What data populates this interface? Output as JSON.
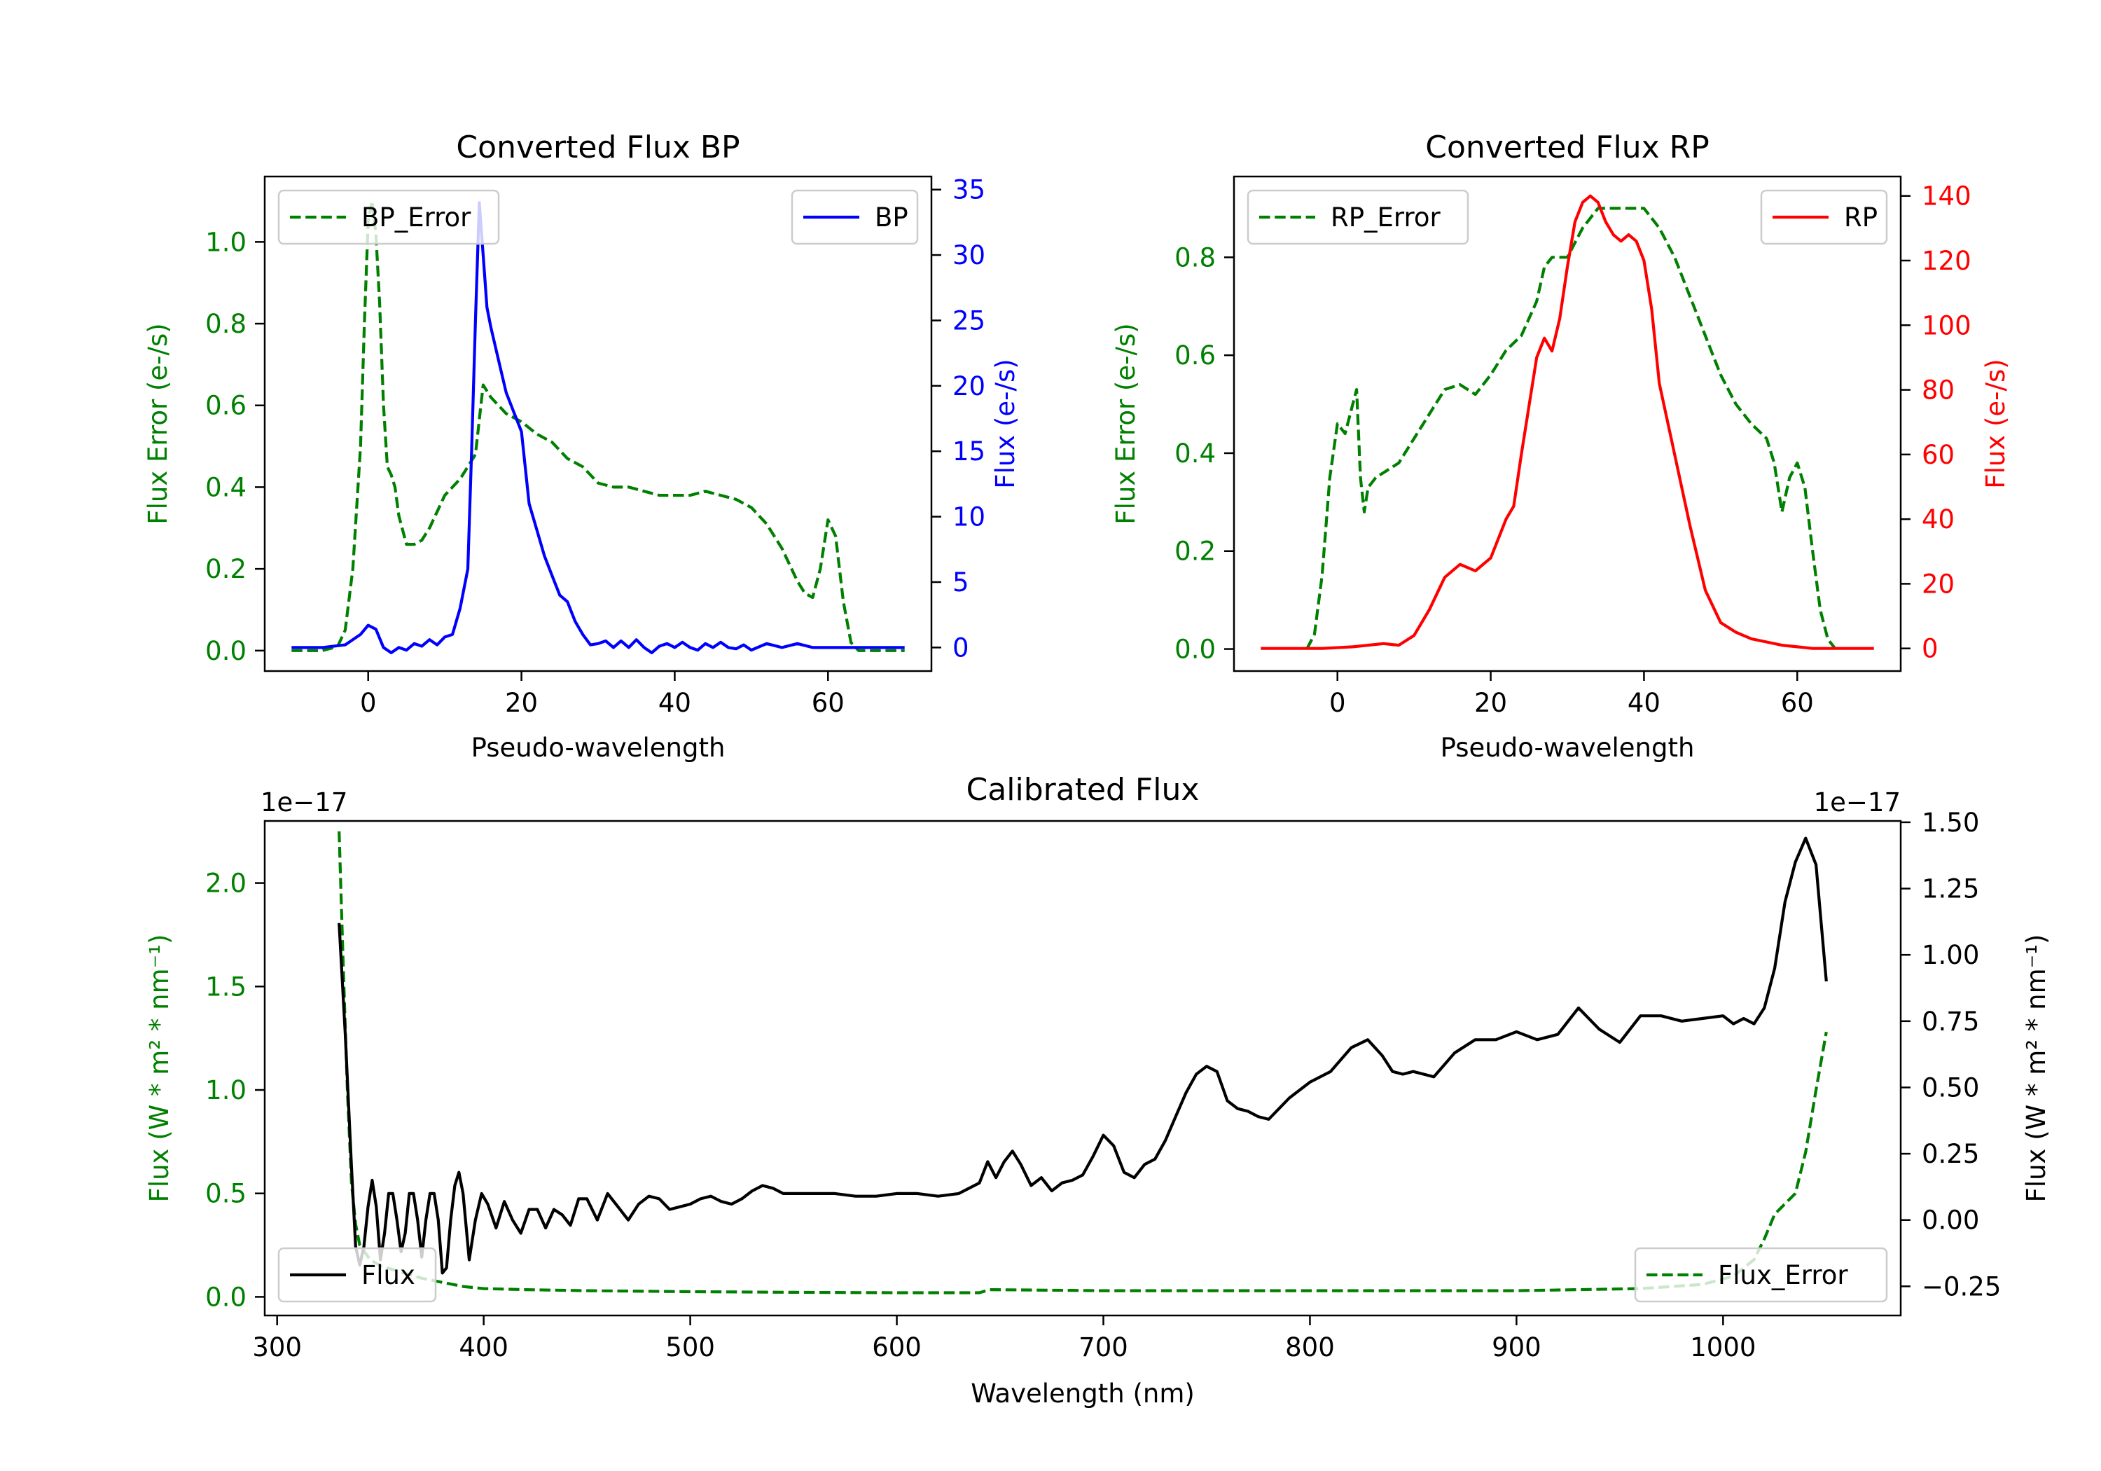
{
  "chart_data": [
    {
      "type": "line",
      "title": "Converted Flux BP",
      "xlabel": "Pseudo-wavelength",
      "ylabel_left": "Flux Error (e-/s)",
      "ylabel_right": "Flux (e-/s)",
      "xlim": [
        -13.5,
        73.5
      ],
      "ylim_left": [
        -0.05,
        1.16
      ],
      "ylim_right": [
        -1.8,
        36.0
      ],
      "xticks": [
        0,
        20,
        40,
        60
      ],
      "xtick_labels": [
        "0",
        "20",
        "40",
        "60"
      ],
      "yticks_left": [
        0.0,
        0.2,
        0.4,
        0.6,
        0.8,
        1.0
      ],
      "ytick_labels_left": [
        "0.0",
        "0.2",
        "0.4",
        "0.6",
        "0.8",
        "1.0"
      ],
      "yticks_right": [
        0,
        5,
        10,
        15,
        20,
        25,
        30,
        35
      ],
      "ytick_labels_right": [
        "0",
        "5",
        "10",
        "15",
        "20",
        "25",
        "30",
        "35"
      ],
      "left_axis_color": "#008000",
      "right_axis_color": "#0000ff",
      "legend_left": {
        "label": "BP_Error",
        "placement": "upper-left"
      },
      "legend_right": {
        "label": "BP",
        "placement": "upper-right"
      },
      "series": [
        {
          "name": "BP_Error",
          "axis": "left",
          "style": "dashed",
          "color": "#008000",
          "x": [
            -10,
            -6,
            -4,
            -3,
            -2,
            -1,
            -0.5,
            0,
            0.5,
            1,
            1.5,
            2,
            2.5,
            3,
            3.5,
            4,
            5,
            6,
            7,
            8,
            10,
            12,
            14,
            15,
            16,
            18,
            20,
            22,
            24,
            26,
            28,
            30,
            32,
            34,
            36,
            38,
            40,
            42,
            44,
            46,
            48,
            50,
            52,
            54,
            56,
            57,
            58,
            59,
            60,
            61,
            62,
            63,
            64,
            66,
            70
          ],
          "y": [
            0.0,
            0.0,
            0.01,
            0.05,
            0.2,
            0.5,
            0.8,
            1.05,
            1.1,
            1.02,
            0.85,
            0.6,
            0.45,
            0.43,
            0.4,
            0.33,
            0.26,
            0.26,
            0.27,
            0.3,
            0.38,
            0.42,
            0.48,
            0.65,
            0.62,
            0.58,
            0.56,
            0.53,
            0.51,
            0.47,
            0.45,
            0.41,
            0.4,
            0.4,
            0.39,
            0.38,
            0.38,
            0.38,
            0.39,
            0.38,
            0.37,
            0.35,
            0.31,
            0.25,
            0.17,
            0.14,
            0.13,
            0.2,
            0.32,
            0.28,
            0.12,
            0.02,
            0.0,
            0.0,
            0.0
          ]
        },
        {
          "name": "BP",
          "axis": "right",
          "style": "solid",
          "color": "#0000ff",
          "x": [
            -10,
            -6,
            -3,
            -1,
            0,
            1,
            2,
            3,
            4,
            5,
            6,
            7,
            8,
            9,
            10,
            11,
            12,
            13,
            13.5,
            14,
            14.5,
            15,
            15.5,
            16,
            17,
            18,
            19,
            20,
            21,
            22,
            23,
            24,
            25,
            26,
            27,
            28,
            29,
            30,
            31,
            32,
            33,
            34,
            35,
            36,
            37,
            38,
            39,
            40,
            41,
            42,
            43,
            44,
            45,
            46,
            47,
            48,
            49,
            50,
            52,
            54,
            56,
            58,
            60,
            62,
            66,
            70
          ],
          "y": [
            0,
            0,
            0.2,
            1.0,
            1.7,
            1.4,
            0.0,
            -0.4,
            0.0,
            -0.2,
            0.3,
            0.1,
            0.6,
            0.2,
            0.8,
            1.0,
            3.0,
            6.0,
            15.0,
            25.0,
            34.0,
            30.0,
            26.0,
            24.5,
            22.0,
            19.5,
            18.0,
            16.5,
            11.0,
            9.0,
            7.0,
            5.5,
            4.0,
            3.5,
            2.0,
            1.0,
            0.2,
            0.3,
            0.5,
            0.0,
            0.5,
            0.0,
            0.6,
            0.0,
            -0.4,
            0.1,
            0.3,
            0.0,
            0.4,
            0.0,
            -0.2,
            0.3,
            0.0,
            0.4,
            0.0,
            -0.1,
            0.2,
            -0.2,
            0.3,
            0.0,
            0.3,
            0.0,
            0.0,
            0.0,
            0.0,
            0.0
          ]
        }
      ]
    },
    {
      "type": "line",
      "title": "Converted Flux RP",
      "xlabel": "Pseudo-wavelength",
      "ylabel_left": "Flux Error (e-/s)",
      "ylabel_right": "Flux (e-/s)",
      "xlim": [
        -13.5,
        73.5
      ],
      "ylim_left": [
        -0.045,
        0.965
      ],
      "ylim_right": [
        -7.0,
        146.0
      ],
      "xticks": [
        0,
        20,
        40,
        60
      ],
      "xtick_labels": [
        "0",
        "20",
        "40",
        "60"
      ],
      "yticks_left": [
        0.0,
        0.2,
        0.4,
        0.6,
        0.8
      ],
      "ytick_labels_left": [
        "0.0",
        "0.2",
        "0.4",
        "0.6",
        "0.8"
      ],
      "yticks_right": [
        0,
        20,
        40,
        60,
        80,
        100,
        120,
        140
      ],
      "ytick_labels_right": [
        "0",
        "20",
        "40",
        "60",
        "80",
        "100",
        "120",
        "140"
      ],
      "left_axis_color": "#008000",
      "right_axis_color": "#ff0000",
      "legend_left": {
        "label": "RP_Error",
        "placement": "upper-left"
      },
      "legend_right": {
        "label": "RP",
        "placement": "upper-right"
      },
      "series": [
        {
          "name": "RP_Error",
          "axis": "left",
          "style": "dashed",
          "color": "#008000",
          "x": [
            -4,
            -3,
            -2,
            -1,
            0,
            1,
            2,
            2.5,
            3,
            3.5,
            4,
            5,
            6,
            8,
            10,
            12,
            14,
            16,
            18,
            20,
            22,
            24,
            26,
            27,
            28,
            30,
            32,
            34,
            36,
            38,
            40,
            42,
            44,
            46,
            48,
            50,
            52,
            54,
            56,
            57,
            58,
            59,
            60,
            61,
            62,
            63,
            64,
            65
          ],
          "y": [
            0.0,
            0.03,
            0.15,
            0.35,
            0.46,
            0.44,
            0.5,
            0.53,
            0.35,
            0.28,
            0.33,
            0.35,
            0.36,
            0.38,
            0.43,
            0.48,
            0.53,
            0.54,
            0.52,
            0.56,
            0.61,
            0.64,
            0.71,
            0.78,
            0.8,
            0.8,
            0.86,
            0.9,
            0.9,
            0.9,
            0.9,
            0.86,
            0.8,
            0.72,
            0.64,
            0.56,
            0.5,
            0.46,
            0.43,
            0.38,
            0.28,
            0.35,
            0.38,
            0.33,
            0.2,
            0.08,
            0.02,
            0.0
          ]
        },
        {
          "name": "RP",
          "axis": "right",
          "style": "solid",
          "color": "#ff0000",
          "x": [
            -10,
            -6,
            -2,
            2,
            4,
            6,
            8,
            10,
            12,
            14,
            16,
            18,
            20,
            22,
            23,
            24,
            26,
            27,
            28,
            29,
            30,
            31,
            32,
            33,
            34,
            35,
            36,
            37,
            38,
            39,
            40,
            41,
            42,
            44,
            46,
            48,
            50,
            52,
            54,
            56,
            58,
            60,
            62,
            64,
            66,
            70
          ],
          "y": [
            0,
            0,
            0,
            0.5,
            1.0,
            1.5,
            1.0,
            4.0,
            12.0,
            22.0,
            26.0,
            24.0,
            28.0,
            40.0,
            44.0,
            60.0,
            90.0,
            96.0,
            92.0,
            102.0,
            118.0,
            132.0,
            138.0,
            140.0,
            138.0,
            132.0,
            128.0,
            126.0,
            128.0,
            126.0,
            120.0,
            105.0,
            82.0,
            60.0,
            38.0,
            18.0,
            8.0,
            5.0,
            3.0,
            2.0,
            1.0,
            0.5,
            0.0,
            0.0,
            0.0,
            0.0
          ]
        }
      ]
    },
    {
      "type": "line",
      "title": "Calibrated Flux",
      "xlabel": "Wavelength (nm)",
      "ylabel_left": "Flux (W * m² * nm⁻¹)",
      "ylabel_right": "Flux (W * m² * nm⁻¹)",
      "offset_label_left": "1e−17",
      "offset_label_right": "1e−17",
      "xlim": [
        294,
        1086
      ],
      "ylim_left": [
        -0.09,
        2.3
      ],
      "ylim_right": [
        -0.36,
        1.505
      ],
      "xticks": [
        300,
        400,
        500,
        600,
        700,
        800,
        900,
        1000
      ],
      "xtick_labels": [
        "300",
        "400",
        "500",
        "600",
        "700",
        "800",
        "900",
        "1000"
      ],
      "yticks_left": [
        0.0,
        0.5,
        1.0,
        1.5,
        2.0
      ],
      "ytick_labels_left": [
        "0.0",
        "0.5",
        "1.0",
        "1.5",
        "2.0"
      ],
      "yticks_right": [
        -0.25,
        0.0,
        0.25,
        0.5,
        0.75,
        1.0,
        1.25,
        1.5
      ],
      "ytick_labels_right": [
        "−0.25",
        "0.00",
        "0.25",
        "0.50",
        "0.75",
        "1.00",
        "1.25",
        "1.50"
      ],
      "left_axis_color": "#008000",
      "right_axis_color": "#000000",
      "legend_left": {
        "label": "Flux",
        "placement": "lower-left"
      },
      "legend_right": {
        "label": "Flux_Error",
        "placement": "lower-right"
      },
      "series": [
        {
          "name": "Flux_Error",
          "axis": "left",
          "style": "dashed",
          "color": "#008000",
          "x": [
            330,
            332,
            334,
            336,
            338,
            340,
            345,
            350,
            360,
            370,
            380,
            390,
            400,
            420,
            450,
            500,
            550,
            600,
            640,
            645,
            700,
            800,
            900,
            960,
            990,
            1005,
            1015,
            1020,
            1025,
            1030,
            1035,
            1040,
            1045,
            1050
          ],
          "y": [
            2.25,
            1.6,
            1.0,
            0.55,
            0.35,
            0.25,
            0.18,
            0.15,
            0.12,
            0.09,
            0.07,
            0.05,
            0.04,
            0.035,
            0.03,
            0.025,
            0.022,
            0.02,
            0.02,
            0.035,
            0.03,
            0.03,
            0.03,
            0.04,
            0.06,
            0.1,
            0.18,
            0.28,
            0.4,
            0.45,
            0.5,
            0.7,
            1.0,
            1.28
          ]
        },
        {
          "name": "Flux",
          "axis": "right",
          "style": "solid",
          "color": "#000000",
          "x": [
            330,
            333,
            336,
            338,
            340,
            342,
            344,
            346,
            348,
            350,
            352,
            354,
            356,
            358,
            360,
            362,
            364,
            366,
            368,
            370,
            372,
            374,
            376,
            378,
            380,
            382,
            384,
            386,
            388,
            390,
            393,
            396,
            399,
            402,
            406,
            410,
            414,
            418,
            422,
            426,
            430,
            434,
            438,
            442,
            446,
            450,
            455,
            460,
            465,
            470,
            475,
            480,
            485,
            490,
            495,
            500,
            505,
            510,
            515,
            520,
            525,
            530,
            535,
            540,
            545,
            550,
            560,
            570,
            580,
            590,
            600,
            610,
            620,
            630,
            640,
            644,
            648,
            652,
            656,
            660,
            665,
            670,
            675,
            680,
            685,
            690,
            695,
            700,
            705,
            710,
            715,
            720,
            725,
            730,
            735,
            740,
            745,
            750,
            755,
            760,
            765,
            770,
            775,
            780,
            790,
            800,
            810,
            820,
            828,
            835,
            840,
            845,
            850,
            860,
            870,
            880,
            890,
            900,
            910,
            920,
            930,
            940,
            950,
            960,
            970,
            980,
            990,
            1000,
            1005,
            1010,
            1015,
            1020,
            1025,
            1030,
            1035,
            1040,
            1045,
            1050
          ],
          "y": [
            1.12,
            0.7,
            0.2,
            -0.1,
            -0.17,
            -0.1,
            0.05,
            0.15,
            0.05,
            -0.15,
            -0.05,
            0.1,
            0.1,
            0.0,
            -0.12,
            -0.05,
            0.1,
            0.1,
            0.0,
            -0.14,
            0.0,
            0.1,
            0.1,
            0.0,
            -0.2,
            -0.18,
            0.0,
            0.13,
            0.18,
            0.1,
            -0.15,
            0.0,
            0.1,
            0.06,
            -0.03,
            0.07,
            0.0,
            -0.05,
            0.04,
            0.04,
            -0.03,
            0.04,
            0.02,
            -0.02,
            0.08,
            0.08,
            0.0,
            0.1,
            0.05,
            0.0,
            0.06,
            0.09,
            0.08,
            0.04,
            0.05,
            0.06,
            0.08,
            0.09,
            0.07,
            0.06,
            0.08,
            0.11,
            0.13,
            0.12,
            0.1,
            0.1,
            0.1,
            0.1,
            0.09,
            0.09,
            0.1,
            0.1,
            0.09,
            0.1,
            0.14,
            0.22,
            0.16,
            0.22,
            0.26,
            0.21,
            0.13,
            0.16,
            0.11,
            0.14,
            0.15,
            0.17,
            0.24,
            0.32,
            0.28,
            0.18,
            0.16,
            0.21,
            0.23,
            0.3,
            0.39,
            0.48,
            0.55,
            0.58,
            0.56,
            0.45,
            0.42,
            0.41,
            0.39,
            0.38,
            0.46,
            0.52,
            0.56,
            0.65,
            0.68,
            0.62,
            0.56,
            0.55,
            0.56,
            0.54,
            0.63,
            0.68,
            0.68,
            0.71,
            0.68,
            0.7,
            0.8,
            0.72,
            0.67,
            0.77,
            0.77,
            0.75,
            0.76,
            0.77,
            0.74,
            0.76,
            0.74,
            0.8,
            0.95,
            1.2,
            1.35,
            1.44,
            1.34,
            0.9
          ]
        }
      ]
    }
  ]
}
